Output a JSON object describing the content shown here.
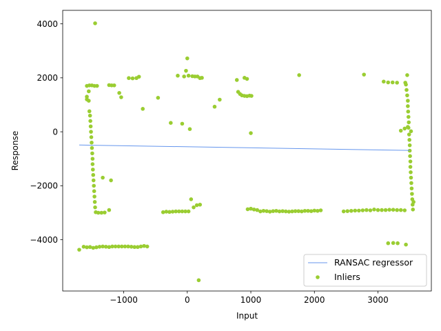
{
  "chart_data": {
    "type": "scatter",
    "title": "",
    "xlabel": "Input",
    "ylabel": "Response",
    "xlim": [
      -1960,
      3840
    ],
    "ylim": [
      -5900,
      4500
    ],
    "xticks": [
      -1000,
      0,
      1000,
      2000,
      3000
    ],
    "xtick_labels": [
      "−1000",
      "0",
      "1000",
      "2000",
      "3000"
    ],
    "yticks": [
      -4000,
      -2000,
      0,
      2000,
      4000
    ],
    "ytick_labels": [
      "−4000",
      "−2000",
      "0",
      "2000",
      "4000"
    ],
    "grid": false,
    "legend_position": "lower-right",
    "series": [
      {
        "name": "RANSAC regressor",
        "kind": "line",
        "color": "#6495ed",
        "x": [
          -1700,
          3500
        ],
        "y": [
          -490,
          -690
        ]
      },
      {
        "name": "Inliers",
        "kind": "scatter",
        "color": "#9acd32",
        "points": [
          [
            -1450,
            4020
          ],
          [
            0,
            2720
          ],
          [
            -20,
            2260
          ],
          [
            -150,
            2080
          ],
          [
            -50,
            2050
          ],
          [
            20,
            2080
          ],
          [
            80,
            2060
          ],
          [
            120,
            2050
          ],
          [
            160,
            2050
          ],
          [
            200,
            1990
          ],
          [
            230,
            2000
          ],
          [
            -920,
            1990
          ],
          [
            -860,
            1980
          ],
          [
            -800,
            1990
          ],
          [
            -760,
            2040
          ],
          [
            -1580,
            1700
          ],
          [
            -1540,
            1720
          ],
          [
            -1500,
            1720
          ],
          [
            -1460,
            1700
          ],
          [
            -1420,
            1700
          ],
          [
            -1230,
            1730
          ],
          [
            -1190,
            1720
          ],
          [
            -1150,
            1720
          ],
          [
            -1580,
            1200
          ],
          [
            -1550,
            1150
          ],
          [
            -1580,
            1300
          ],
          [
            -1550,
            1500
          ],
          [
            -1070,
            1440
          ],
          [
            -1040,
            1280
          ],
          [
            -700,
            850
          ],
          [
            -460,
            1260
          ],
          [
            -260,
            330
          ],
          [
            -80,
            300
          ],
          [
            40,
            100
          ],
          [
            430,
            930
          ],
          [
            510,
            1190
          ],
          [
            780,
            1920
          ],
          [
            900,
            2000
          ],
          [
            940,
            1960
          ],
          [
            1000,
            -50
          ],
          [
            1760,
            2100
          ],
          [
            2780,
            2120
          ],
          [
            800,
            1480
          ],
          [
            830,
            1400
          ],
          [
            860,
            1350
          ],
          [
            900,
            1330
          ],
          [
            940,
            1320
          ],
          [
            980,
            1340
          ],
          [
            1010,
            1330
          ],
          [
            3090,
            1860
          ],
          [
            3160,
            1830
          ],
          [
            3230,
            1830
          ],
          [
            3300,
            1820
          ],
          [
            3430,
            1820
          ],
          [
            3460,
            2100
          ],
          [
            3360,
            40
          ],
          [
            3420,
            120
          ],
          [
            3470,
            180
          ],
          [
            3520,
            20
          ],
          [
            -1540,
            760
          ],
          [
            -1530,
            600
          ],
          [
            -1525,
            400
          ],
          [
            -1520,
            200
          ],
          [
            -1515,
            0
          ],
          [
            -1510,
            -200
          ],
          [
            -1505,
            -400
          ],
          [
            -1500,
            -600
          ],
          [
            -1495,
            -800
          ],
          [
            -1490,
            -1000
          ],
          [
            -1490,
            -1200
          ],
          [
            -1485,
            -1400
          ],
          [
            -1480,
            -1600
          ],
          [
            -1475,
            -1800
          ],
          [
            -1470,
            -2000
          ],
          [
            -1465,
            -2200
          ],
          [
            -1460,
            -2400
          ],
          [
            -1455,
            -2600
          ],
          [
            -1450,
            -2800
          ],
          [
            -1440,
            -2980
          ],
          [
            -1400,
            -3000
          ],
          [
            -1350,
            -3000
          ],
          [
            -1300,
            -2990
          ],
          [
            -1230,
            -2900
          ],
          [
            -1330,
            -1700
          ],
          [
            -1200,
            -1800
          ],
          [
            3440,
            1750
          ],
          [
            3450,
            1550
          ],
          [
            3460,
            1350
          ],
          [
            3470,
            1150
          ],
          [
            3470,
            950
          ],
          [
            3475,
            750
          ],
          [
            3480,
            550
          ],
          [
            3485,
            350
          ],
          [
            3480,
            150
          ],
          [
            3490,
            -100
          ],
          [
            3495,
            -300
          ],
          [
            3500,
            -500
          ],
          [
            3500,
            -700
          ],
          [
            3505,
            -900
          ],
          [
            3510,
            -1100
          ],
          [
            3510,
            -1300
          ],
          [
            3515,
            -1500
          ],
          [
            3520,
            -1700
          ],
          [
            3525,
            -1900
          ],
          [
            3530,
            -2100
          ],
          [
            3535,
            -2300
          ],
          [
            3540,
            -2500
          ],
          [
            3545,
            -2700
          ],
          [
            3550,
            -2880
          ],
          [
            3560,
            -2600
          ],
          [
            -380,
            -2980
          ],
          [
            -330,
            -2960
          ],
          [
            -280,
            -2970
          ],
          [
            -230,
            -2960
          ],
          [
            -180,
            -2950
          ],
          [
            -130,
            -2950
          ],
          [
            -80,
            -2950
          ],
          [
            -30,
            -2950
          ],
          [
            20,
            -2950
          ],
          [
            60,
            -2500
          ],
          [
            100,
            -2800
          ],
          [
            150,
            -2720
          ],
          [
            200,
            -2700
          ],
          [
            950,
            -2870
          ],
          [
            1000,
            -2850
          ],
          [
            1050,
            -2880
          ],
          [
            1100,
            -2900
          ],
          [
            1150,
            -2950
          ],
          [
            1200,
            -2930
          ],
          [
            1250,
            -2940
          ],
          [
            1300,
            -2960
          ],
          [
            1350,
            -2940
          ],
          [
            1400,
            -2930
          ],
          [
            1450,
            -2950
          ],
          [
            1500,
            -2940
          ],
          [
            1550,
            -2950
          ],
          [
            1600,
            -2960
          ],
          [
            1650,
            -2950
          ],
          [
            1700,
            -2940
          ],
          [
            1750,
            -2940
          ],
          [
            1800,
            -2950
          ],
          [
            1850,
            -2930
          ],
          [
            1900,
            -2930
          ],
          [
            1950,
            -2940
          ],
          [
            2000,
            -2920
          ],
          [
            2050,
            -2930
          ],
          [
            2100,
            -2910
          ],
          [
            2460,
            -2950
          ],
          [
            2520,
            -2940
          ],
          [
            2580,
            -2930
          ],
          [
            2640,
            -2920
          ],
          [
            2700,
            -2920
          ],
          [
            2760,
            -2910
          ],
          [
            2820,
            -2900
          ],
          [
            2880,
            -2910
          ],
          [
            2940,
            -2880
          ],
          [
            3000,
            -2900
          ],
          [
            3060,
            -2900
          ],
          [
            3120,
            -2900
          ],
          [
            3180,
            -2890
          ],
          [
            3240,
            -2890
          ],
          [
            3300,
            -2900
          ],
          [
            3360,
            -2900
          ],
          [
            3420,
            -2910
          ],
          [
            -1700,
            -4370
          ],
          [
            -1630,
            -4260
          ],
          [
            -1580,
            -4280
          ],
          [
            -1530,
            -4270
          ],
          [
            -1480,
            -4300
          ],
          [
            -1430,
            -4280
          ],
          [
            -1380,
            -4260
          ],
          [
            -1330,
            -4250
          ],
          [
            -1280,
            -4260
          ],
          [
            -1230,
            -4270
          ],
          [
            -1180,
            -4250
          ],
          [
            -1130,
            -4250
          ],
          [
            -1080,
            -4250
          ],
          [
            -1030,
            -4250
          ],
          [
            -980,
            -4250
          ],
          [
            -930,
            -4250
          ],
          [
            -880,
            -4260
          ],
          [
            -830,
            -4270
          ],
          [
            -780,
            -4270
          ],
          [
            -730,
            -4250
          ],
          [
            -680,
            -4230
          ],
          [
            -630,
            -4250
          ],
          [
            3160,
            -4130
          ],
          [
            3240,
            -4120
          ],
          [
            3310,
            -4130
          ],
          [
            3440,
            -4180
          ],
          [
            180,
            -5500
          ]
        ]
      }
    ]
  },
  "legend": {
    "items": [
      {
        "label": "RANSAC regressor",
        "type": "line",
        "color": "#6495ed"
      },
      {
        "label": "Inliers",
        "type": "marker",
        "color": "#9acd32"
      }
    ]
  }
}
